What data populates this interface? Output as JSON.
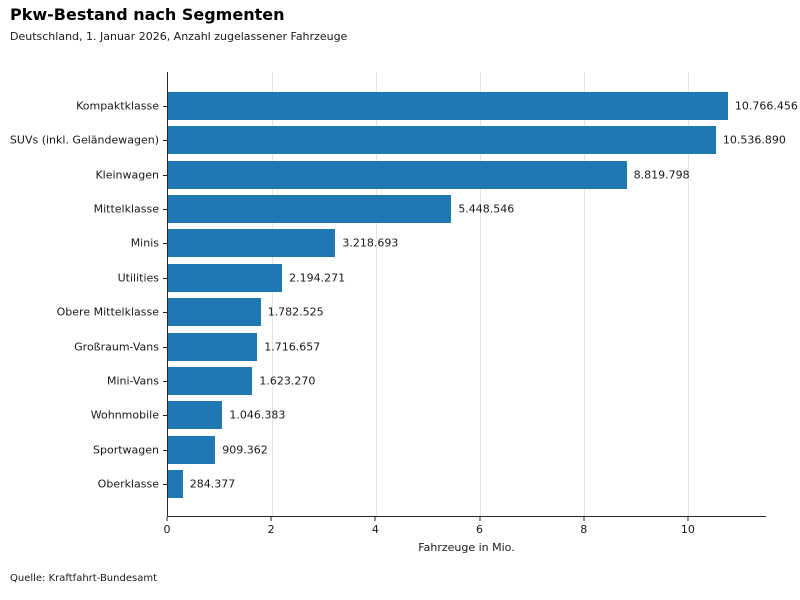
{
  "header": {
    "title": "Pkw-Bestand nach Segmenten",
    "subtitle": "Deutschland, 1. Januar 2026, Anzahl zugelassener Fahrzeuge"
  },
  "footer": {
    "source": "Quelle: Kraftfahrt-Bundesamt"
  },
  "chart_data": {
    "type": "bar",
    "orientation": "horizontal",
    "title": "Pkw-Bestand nach Segmenten",
    "subtitle": "Deutschland, 1. Januar 2026, Anzahl zugelassener Fahrzeuge",
    "categories": [
      "Kompaktklasse",
      "SUVs (inkl. Geländewagen)",
      "Kleinwagen",
      "Mittelklasse",
      "Minis",
      "Utilities",
      "Obere Mittelklasse",
      "Großraum-Vans",
      "Mini-Vans",
      "Wohnmobile",
      "Sportwagen",
      "Oberklasse"
    ],
    "values": [
      10766456,
      10536890,
      8819798,
      5448546,
      3218693,
      2194271,
      1782525,
      1716657,
      1623270,
      1046383,
      909362,
      284377
    ],
    "value_labels": [
      "10.766.456",
      "10.536.890",
      "8.819.798",
      "5.448.546",
      "3.218.693",
      "2.194.271",
      "1.782.525",
      "1.716.657",
      "1.623.270",
      "1.046.383",
      "909.362",
      "284.377"
    ],
    "xlabel": "Fahrzeuge in Mio.",
    "x_ticks": [
      0,
      2,
      4,
      6,
      8,
      10
    ],
    "x_tick_labels": [
      "0",
      "2",
      "4",
      "6",
      "8",
      "10"
    ],
    "xlim": [
      0,
      11.5
    ],
    "unit_divisor": 1000000,
    "grid": "vertical-only",
    "legend": "none",
    "bar_color": "#1f77b4",
    "source": "Quelle: Kraftfahrt-Bundesamt"
  }
}
